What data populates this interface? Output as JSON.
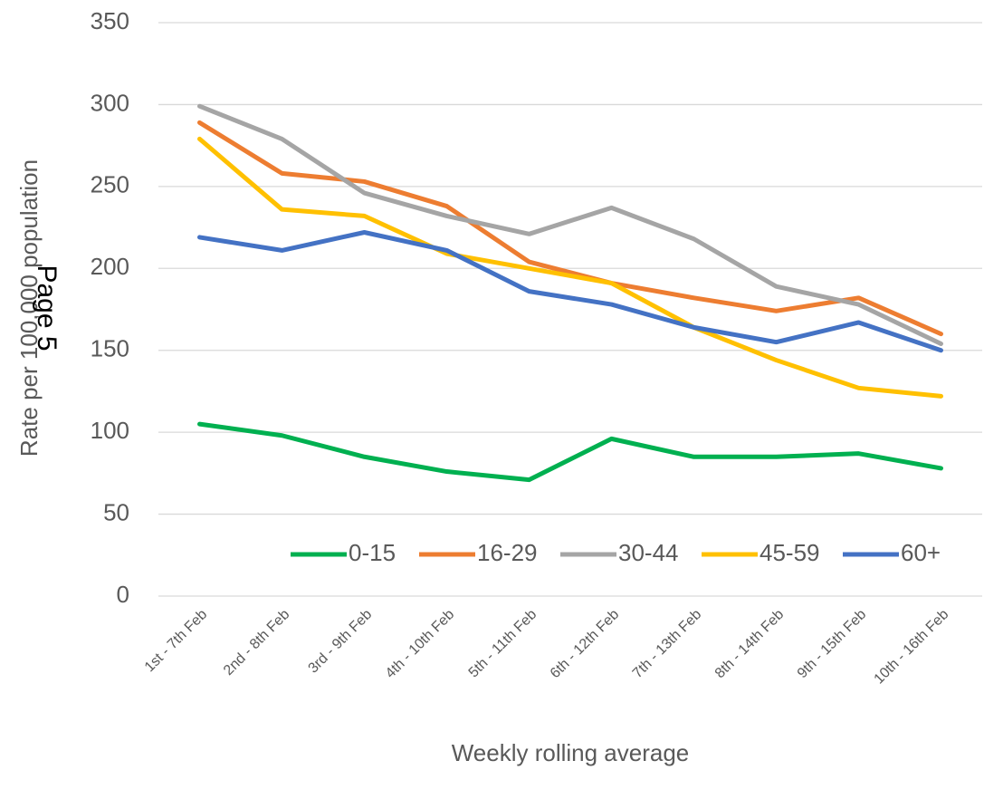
{
  "chart_data": {
    "type": "line",
    "x_label": "Weekly rolling average",
    "y_label": "Rate per 100,000 population",
    "annotation": "Page 5",
    "categories": [
      "1st - 7th Feb",
      "2nd - 8th Feb",
      "3rd - 9th Feb",
      "4th - 10th Feb",
      "5th - 11th Feb",
      "6th - 12th Feb",
      "7th - 13th Feb",
      "8th - 14th Feb",
      "9th - 15th Feb",
      "10th - 16th Feb"
    ],
    "series": [
      {
        "name": "0-15",
        "color": "#00b050",
        "values": [
          105,
          98,
          85,
          76,
          71,
          96,
          85,
          85,
          87,
          78
        ]
      },
      {
        "name": "16-29",
        "color": "#ed7d31",
        "values": [
          289,
          258,
          253,
          238,
          204,
          191,
          182,
          174,
          182,
          160
        ]
      },
      {
        "name": "30-44",
        "color": "#a5a5a5",
        "values": [
          299,
          279,
          246,
          232,
          221,
          237,
          218,
          189,
          178,
          154
        ]
      },
      {
        "name": "45-59",
        "color": "#ffc000",
        "values": [
          279,
          236,
          232,
          209,
          200,
          191,
          164,
          144,
          127,
          122
        ]
      },
      {
        "name": "60+",
        "color": "#4472c4",
        "values": [
          219,
          211,
          222,
          211,
          186,
          178,
          164,
          155,
          167,
          150
        ]
      }
    ],
    "ylim": [
      0,
      350
    ],
    "yticks": [
      0,
      50,
      100,
      150,
      200,
      250,
      300,
      350
    ],
    "grid": true,
    "legend": "bottom"
  }
}
